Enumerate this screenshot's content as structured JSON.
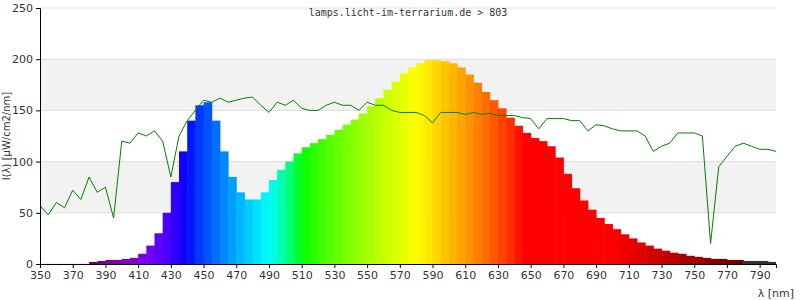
{
  "chart_data": {
    "type": "area",
    "title": "lamps.licht-im-terrarium.de > 803",
    "x_label": "λ [nm]",
    "y_label": "I(λ) [µW/cm2/nm]",
    "xlim": [
      350,
      800
    ],
    "xticks": [
      350,
      370,
      390,
      410,
      430,
      450,
      470,
      490,
      510,
      530,
      550,
      570,
      590,
      610,
      630,
      650,
      670,
      690,
      710,
      730,
      750,
      770,
      790
    ],
    "ylim": [
      0,
      250
    ],
    "yticks": [
      0,
      50,
      100,
      150,
      200,
      250
    ],
    "grid": true,
    "series": [
      {
        "type": "area",
        "x": [
          380,
          385,
          390,
          395,
          400,
          405,
          410,
          415,
          420,
          425,
          430,
          435,
          440,
          445,
          450,
          455,
          460,
          465,
          470,
          475,
          480,
          485,
          490,
          495,
          500,
          505,
          510,
          515,
          520,
          525,
          530,
          535,
          540,
          545,
          550,
          555,
          560,
          565,
          570,
          575,
          580,
          585,
          590,
          595,
          600,
          605,
          610,
          615,
          620,
          625,
          630,
          635,
          640,
          645,
          650,
          655,
          660,
          665,
          670,
          675,
          680,
          685,
          690,
          695,
          700,
          705,
          710,
          715,
          720,
          725,
          730,
          735,
          740,
          745,
          750,
          755,
          760,
          765,
          770,
          775,
          780,
          785,
          790,
          795
        ],
        "values": [
          2,
          3,
          4,
          4,
          5,
          6,
          10,
          18,
          30,
          50,
          80,
          110,
          140,
          155,
          158,
          140,
          110,
          85,
          70,
          63,
          63,
          70,
          82,
          92,
          100,
          108,
          114,
          118,
          122,
          126,
          131,
          136,
          141,
          147,
          154,
          162,
          170,
          178,
          186,
          192,
          196,
          199,
          199,
          198,
          196,
          192,
          185,
          177,
          168,
          160,
          152,
          143,
          135,
          128,
          123,
          120,
          115,
          104,
          88,
          74,
          62,
          53,
          45,
          39,
          34,
          29,
          25,
          21,
          18,
          15,
          13,
          11,
          10,
          8,
          7,
          6,
          5,
          5,
          4,
          4,
          3,
          3,
          3,
          2
        ]
      },
      {
        "type": "line",
        "color": "#008000",
        "x": [
          350,
          355,
          360,
          365,
          370,
          375,
          380,
          385,
          390,
          395,
          400,
          405,
          410,
          415,
          420,
          425,
          430,
          435,
          440,
          445,
          450,
          455,
          460,
          465,
          470,
          475,
          480,
          485,
          490,
          495,
          500,
          505,
          510,
          515,
          520,
          525,
          530,
          535,
          540,
          545,
          550,
          555,
          560,
          565,
          570,
          575,
          580,
          585,
          590,
          595,
          600,
          605,
          610,
          615,
          620,
          625,
          630,
          635,
          640,
          645,
          650,
          655,
          660,
          665,
          670,
          675,
          680,
          685,
          690,
          695,
          700,
          705,
          710,
          715,
          720,
          725,
          730,
          735,
          740,
          745,
          750,
          755,
          760,
          765,
          770,
          775,
          780,
          785,
          790,
          795,
          800
        ],
        "values": [
          57,
          48,
          60,
          55,
          72,
          63,
          85,
          70,
          75,
          45,
          120,
          118,
          128,
          125,
          130,
          120,
          85,
          125,
          140,
          150,
          160,
          158,
          162,
          158,
          160,
          162,
          163,
          155,
          148,
          158,
          155,
          160,
          152,
          150,
          150,
          155,
          158,
          155,
          155,
          150,
          158,
          155,
          155,
          150,
          148,
          148,
          148,
          145,
          138,
          148,
          148,
          148,
          146,
          148,
          146,
          147,
          145,
          145,
          145,
          143,
          142,
          132,
          142,
          142,
          142,
          140,
          140,
          130,
          136,
          135,
          132,
          130,
          130,
          130,
          125,
          110,
          115,
          118,
          128,
          128,
          128,
          125,
          20,
          95,
          105,
          115,
          118,
          115,
          112,
          112,
          110
        ]
      }
    ]
  }
}
